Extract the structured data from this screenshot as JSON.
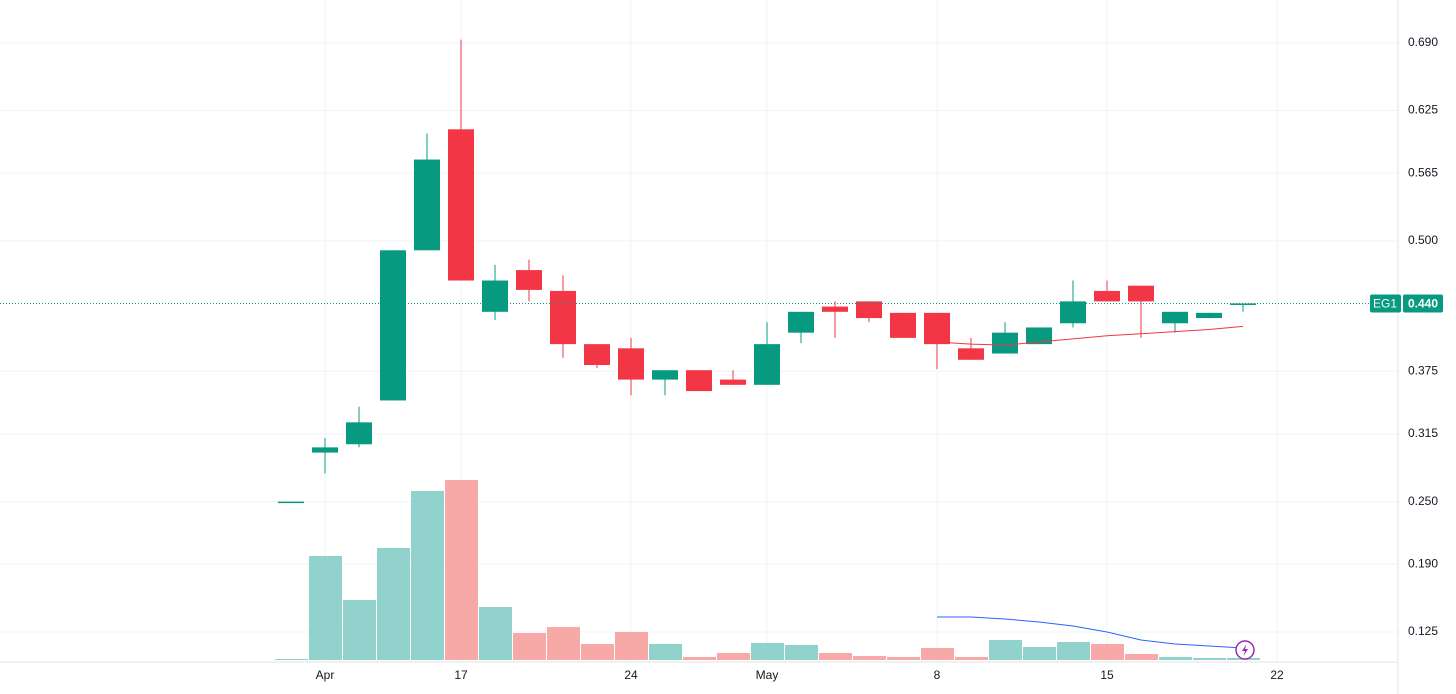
{
  "chart_data": {
    "type": "candlestick",
    "symbol": "EG1",
    "last_price": {
      "value": 0.44,
      "label": "0.440"
    },
    "categories": [
      null,
      "Apr",
      null,
      null,
      null,
      "17",
      null,
      null,
      null,
      null,
      "24",
      null,
      null,
      null,
      "May",
      null,
      null,
      null,
      null,
      "8",
      null,
      null,
      null,
      null,
      "15",
      null,
      null,
      null,
      null,
      "22"
    ],
    "open": [
      0.25,
      0.297,
      0.305,
      0.347,
      0.491,
      0.607,
      0.432,
      0.472,
      0.452,
      0.401,
      0.397,
      0.367,
      0.376,
      0.367,
      0.362,
      0.412,
      0.437,
      0.442,
      0.431,
      0.431,
      0.397,
      0.392,
      0.401,
      0.421,
      0.452,
      0.457,
      0.421,
      0.426,
      0.44,
      null
    ],
    "high": [
      0.25,
      0.311,
      0.341,
      0.491,
      0.603,
      0.693,
      0.477,
      0.482,
      0.467,
      0.401,
      0.407,
      0.376,
      0.376,
      0.376,
      0.422,
      0.432,
      0.442,
      0.442,
      0.431,
      0.431,
      0.407,
      0.422,
      0.417,
      0.462,
      0.462,
      0.457,
      0.432,
      0.431,
      0.44,
      null
    ],
    "low": [
      0.25,
      0.277,
      0.302,
      0.347,
      0.491,
      0.462,
      0.424,
      0.442,
      0.388,
      0.378,
      0.352,
      0.352,
      0.356,
      0.362,
      0.362,
      0.402,
      0.407,
      0.422,
      0.407,
      0.377,
      0.386,
      0.392,
      0.401,
      0.417,
      0.442,
      0.407,
      0.412,
      0.426,
      0.432,
      null
    ],
    "close": [
      0.25,
      0.302,
      0.326,
      0.491,
      0.578,
      0.462,
      0.462,
      0.453,
      0.401,
      0.381,
      0.367,
      0.376,
      0.356,
      0.362,
      0.401,
      0.432,
      0.432,
      0.426,
      0.407,
      0.401,
      0.386,
      0.412,
      0.417,
      0.442,
      0.442,
      0.442,
      0.432,
      0.431,
      0.44,
      null
    ],
    "volume": [
      1,
      104,
      60,
      112,
      169,
      180,
      53,
      27,
      33,
      16,
      28,
      16,
      3,
      7,
      17,
      15,
      7,
      4,
      3,
      12,
      3,
      20,
      13,
      18,
      16,
      6,
      3,
      2,
      2,
      null
    ],
    "volume_ylim": [
      0,
      200
    ],
    "price_ma": {
      "color": "#f23645",
      "values": [
        null,
        null,
        null,
        null,
        null,
        null,
        null,
        null,
        null,
        null,
        null,
        null,
        null,
        null,
        null,
        null,
        null,
        null,
        null,
        0.403,
        0.401,
        0.4,
        0.403,
        0.406,
        0.409,
        0.411,
        0.413,
        0.415,
        0.418,
        null
      ]
    },
    "volume_ma": {
      "color": "#2962ff",
      "values": [
        null,
        null,
        null,
        null,
        null,
        null,
        null,
        null,
        null,
        null,
        null,
        null,
        null,
        null,
        null,
        null,
        null,
        null,
        null,
        43,
        43,
        41,
        38,
        34,
        28,
        20,
        16,
        14,
        12,
        null
      ]
    },
    "up_color": "#089981",
    "down_color": "#f23645",
    "volume_up_color": "#92d2cc",
    "volume_down_color": "#f7a9a7",
    "ylim": [
      0.0962,
      0.731
    ],
    "yticks": [
      {
        "value": 0.69,
        "label": "0.690"
      },
      {
        "value": 0.625,
        "label": "0.625"
      },
      {
        "value": 0.565,
        "label": "0.565"
      },
      {
        "value": 0.5,
        "label": "0.500"
      },
      {
        "value": 0.375,
        "label": "0.375"
      },
      {
        "value": 0.315,
        "label": "0.315"
      },
      {
        "value": 0.25,
        "label": "0.250"
      },
      {
        "value": 0.19,
        "label": "0.190"
      },
      {
        "value": 0.125,
        "label": "0.125"
      }
    ],
    "grid": true
  }
}
